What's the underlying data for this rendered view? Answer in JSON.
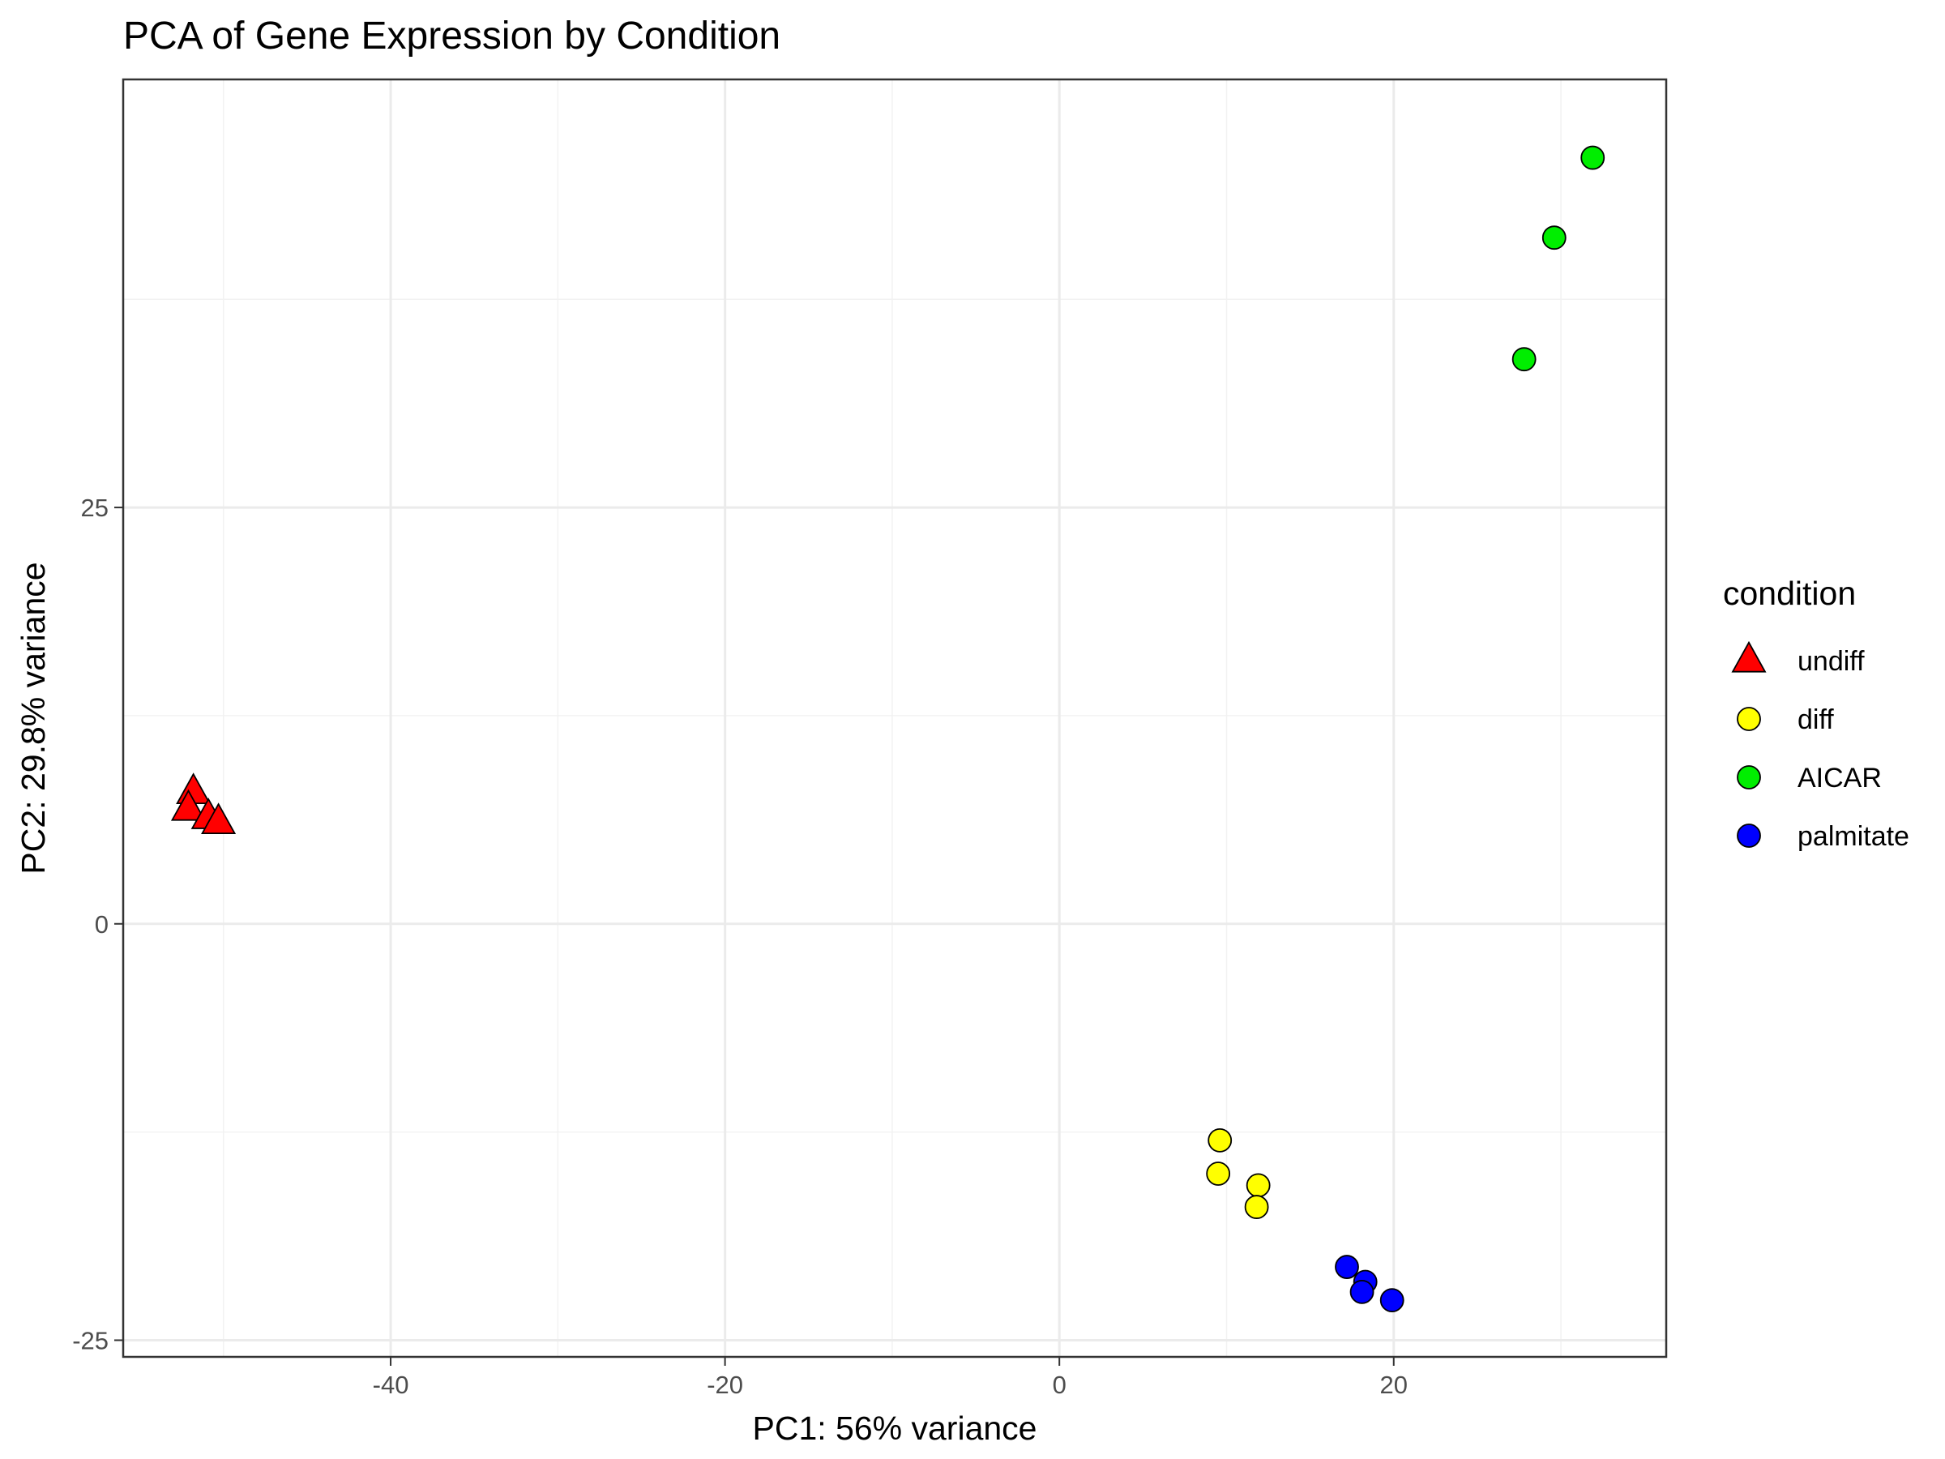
{
  "chart_data": {
    "type": "scatter",
    "title": "PCA of Gene Expression by Condition",
    "xlabel": "PC1: 56% variance",
    "ylabel": "PC2: 29.8% variance",
    "xlim": [
      -56,
      36.3
    ],
    "ylim": [
      -26,
      50.7
    ],
    "xticks": [
      -40,
      -20,
      0,
      20
    ],
    "yticks": [
      -25,
      0,
      25
    ],
    "grid": true,
    "legend": {
      "title": "condition",
      "position": "right"
    },
    "series": [
      {
        "name": "undiff",
        "shape": "triangle",
        "color": "#ff0000",
        "points": [
          {
            "x": -51.8,
            "y": 7.9
          },
          {
            "x": -52.1,
            "y": 6.9
          },
          {
            "x": -50.9,
            "y": 6.4
          },
          {
            "x": -50.3,
            "y": 6.1
          }
        ]
      },
      {
        "name": "diff",
        "shape": "circle",
        "color": "#ffff00",
        "points": [
          {
            "x": 9.6,
            "y": -13.0
          },
          {
            "x": 9.5,
            "y": -15.0
          },
          {
            "x": 11.9,
            "y": -15.7
          },
          {
            "x": 11.8,
            "y": -17.0
          }
        ]
      },
      {
        "name": "AICAR",
        "shape": "circle",
        "color": "#00ee00",
        "points": [
          {
            "x": 31.9,
            "y": 46.0
          },
          {
            "x": 29.6,
            "y": 41.2
          },
          {
            "x": 27.8,
            "y": 33.9
          }
        ]
      },
      {
        "name": "palmitate",
        "shape": "circle",
        "color": "#0000ff",
        "points": [
          {
            "x": 17.2,
            "y": -20.6
          },
          {
            "x": 18.3,
            "y": -21.5
          },
          {
            "x": 18.1,
            "y": -22.1
          },
          {
            "x": 19.9,
            "y": -22.6
          }
        ]
      }
    ]
  }
}
